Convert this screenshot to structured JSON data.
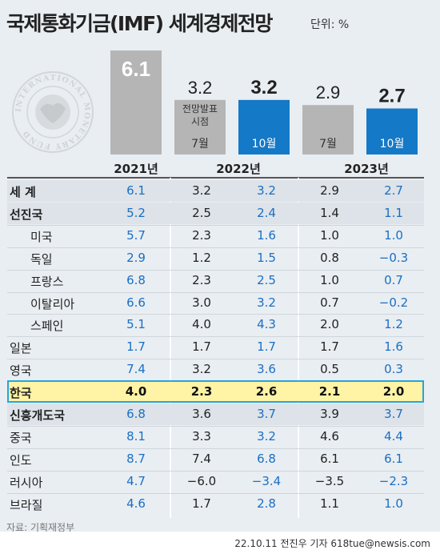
{
  "header": {
    "title": "국제통화기금(IMF) 세계경제전망",
    "unit": "단위: %"
  },
  "seal": {
    "ring_text": "INTERNATIONAL MONETARY FUND"
  },
  "chart_data": {
    "type": "bar",
    "bars": [
      {
        "year": "2021년",
        "label": "",
        "value": 6.1,
        "value_text": "6.1",
        "color": "#b5b5b5"
      },
      {
        "year": "2022년",
        "label": "7월",
        "value": 3.2,
        "value_text": "3.2",
        "color": "#b5b5b5",
        "note": "전망발표\n시점"
      },
      {
        "year": "2022년",
        "label": "10월",
        "value": 3.2,
        "value_text": "3.2",
        "color": "#1479c7"
      },
      {
        "year": "2023년",
        "label": "7월",
        "value": 2.9,
        "value_text": "2.9",
        "color": "#b5b5b5"
      },
      {
        "year": "2023년",
        "label": "10월",
        "value": 2.7,
        "value_text": "2.7",
        "color": "#1479c7"
      }
    ],
    "years": [
      "2021년",
      "2022년",
      "2023년"
    ],
    "table": {
      "rows": [
        {
          "name": "세  계",
          "bold": true,
          "indent": 0,
          "v2021": "6.1",
          "v2022_jul": "3.2",
          "v2022_oct": "3.2",
          "v2023_jul": "2.9",
          "v2023_oct": "2.7"
        },
        {
          "name": "선진국",
          "bold": true,
          "indent": 0,
          "v2021": "5.2",
          "v2022_jul": "2.5",
          "v2022_oct": "2.4",
          "v2023_jul": "1.4",
          "v2023_oct": "1.1"
        },
        {
          "name": "미국",
          "bold": false,
          "indent": 1,
          "v2021": "5.7",
          "v2022_jul": "2.3",
          "v2022_oct": "1.6",
          "v2023_jul": "1.0",
          "v2023_oct": "1.0"
        },
        {
          "name": "독일",
          "bold": false,
          "indent": 1,
          "v2021": "2.9",
          "v2022_jul": "1.2",
          "v2022_oct": "1.5",
          "v2023_jul": "0.8",
          "v2023_oct": "−0.3"
        },
        {
          "name": "프랑스",
          "bold": false,
          "indent": 1,
          "v2021": "6.8",
          "v2022_jul": "2.3",
          "v2022_oct": "2.5",
          "v2023_jul": "1.0",
          "v2023_oct": "0.7"
        },
        {
          "name": "이탈리아",
          "bold": false,
          "indent": 1,
          "v2021": "6.6",
          "v2022_jul": "3.0",
          "v2022_oct": "3.2",
          "v2023_jul": "0.7",
          "v2023_oct": "−0.2"
        },
        {
          "name": "스페인",
          "bold": false,
          "indent": 1,
          "v2021": "5.1",
          "v2022_jul": "4.0",
          "v2022_oct": "4.3",
          "v2023_jul": "2.0",
          "v2023_oct": "1.2"
        },
        {
          "name": "일본",
          "bold": false,
          "indent": 0,
          "v2021": "1.7",
          "v2022_jul": "1.7",
          "v2022_oct": "1.7",
          "v2023_jul": "1.7",
          "v2023_oct": "1.6"
        },
        {
          "name": "영국",
          "bold": false,
          "indent": 0,
          "v2021": "7.4",
          "v2022_jul": "3.2",
          "v2022_oct": "3.6",
          "v2023_jul": "0.5",
          "v2023_oct": "0.3"
        },
        {
          "name": "한국",
          "bold": true,
          "indent": 0,
          "highlight": true,
          "v2021": "4.0",
          "v2022_jul": "2.3",
          "v2022_oct": "2.6",
          "v2023_jul": "2.1",
          "v2023_oct": "2.0"
        },
        {
          "name": "신흥개도국",
          "bold": true,
          "indent": 0,
          "v2021": "6.8",
          "v2022_jul": "3.6",
          "v2022_oct": "3.7",
          "v2023_jul": "3.9",
          "v2023_oct": "3.7"
        },
        {
          "name": "중국",
          "bold": false,
          "indent": 0,
          "v2021": "8.1",
          "v2022_jul": "3.3",
          "v2022_oct": "3.2",
          "v2023_jul": "4.6",
          "v2023_oct": "4.4"
        },
        {
          "name": "인도",
          "bold": false,
          "indent": 0,
          "v2021": "8.7",
          "v2022_jul": "7.4",
          "v2022_oct": "6.8",
          "v2023_jul": "6.1",
          "v2023_oct": "6.1"
        },
        {
          "name": "러시아",
          "bold": false,
          "indent": 0,
          "v2021": "4.7",
          "v2022_jul": "−6.0",
          "v2022_oct": "−3.4",
          "v2023_jul": "−3.5",
          "v2023_oct": "−2.3"
        },
        {
          "name": "브라질",
          "bold": false,
          "indent": 0,
          "v2021": "4.6",
          "v2022_jul": "1.7",
          "v2022_oct": "2.8",
          "v2023_jul": "1.1",
          "v2023_oct": "1.0"
        }
      ]
    },
    "colors": {
      "gray_bar": "#b5b5b5",
      "blue_bar": "#1479c7",
      "blue_text": "#1a6fc4",
      "highlight_fill": "#fff3a6",
      "highlight_border": "#26a5dd"
    }
  },
  "footer": {
    "source": "자료: 기획재정부",
    "credit": "22.10.11 전진우 기자 618tue@newsis.com"
  }
}
